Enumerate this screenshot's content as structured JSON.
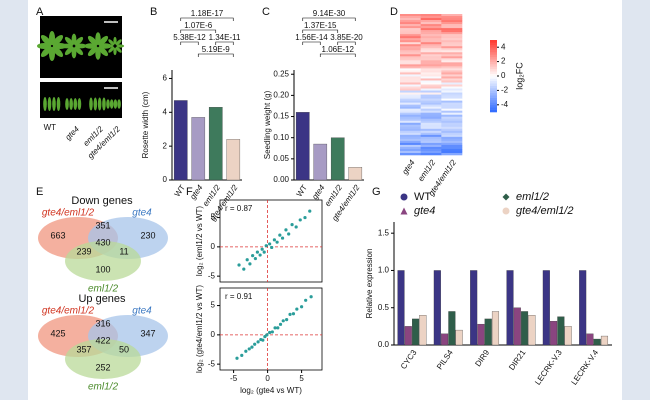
{
  "chart_data": [
    {
      "type": "image",
      "panel": "A",
      "labels": [
        "WT",
        "gte4",
        "eml1/2",
        "gte4/eml1/2"
      ]
    },
    {
      "type": "bar",
      "panel": "B",
      "ylabel": "Rosette width (cm)",
      "categories": [
        "WT",
        "gte4",
        "eml1/2",
        "gte4/eml1/2"
      ],
      "values": [
        4.7,
        3.7,
        4.3,
        2.4
      ],
      "colors": [
        "#3b3585",
        "#a79bc4",
        "#3e7a5c",
        "#ecd3c4"
      ],
      "ylim": [
        0,
        6.5
      ],
      "yticks": [
        0,
        2,
        4,
        6
      ],
      "comparisons": [
        {
          "label": "1.18E-17",
          "from": 0,
          "to": 3
        },
        {
          "label": "1.07E-6",
          "from": 0,
          "to": 2
        },
        {
          "label": "5.38E-12",
          "from": 0,
          "to": 1
        },
        {
          "label": "1.34E-11",
          "from": 2,
          "to": 3
        },
        {
          "label": "5.19E-9",
          "from": 1,
          "to": 3
        }
      ]
    },
    {
      "type": "bar",
      "panel": "C",
      "ylabel": "Seedling weight (g)",
      "categories": [
        "WT",
        "gte4",
        "eml1/2",
        "gte4/eml1/2"
      ],
      "values": [
        0.16,
        0.085,
        0.1,
        0.03
      ],
      "colors": [
        "#3b3585",
        "#a79bc4",
        "#3e7a5c",
        "#ecd3c4"
      ],
      "ylim": [
        0,
        0.26
      ],
      "yticks": [
        {
          "value": 0,
          "label": "0.00"
        },
        {
          "value": 0.05,
          "label": "0.05"
        },
        {
          "value": 0.1,
          "label": "0.10"
        },
        {
          "value": 0.15,
          "label": "0.15"
        },
        {
          "value": 0.2,
          "label": "0.20"
        },
        {
          "value": 0.25,
          "label": "0.25"
        }
      ],
      "comparisons": [
        {
          "label": "9.14E-30",
          "from": 0,
          "to": 3
        },
        {
          "label": "1.37E-15",
          "from": 0,
          "to": 2
        },
        {
          "label": "1.56E-14",
          "from": 0,
          "to": 1
        },
        {
          "label": "3.85E-20",
          "from": 2,
          "to": 3
        },
        {
          "label": "1.06E-12",
          "from": 1,
          "to": 3
        }
      ]
    },
    {
      "type": "heatmap",
      "panel": "D",
      "columns": [
        "gte4",
        "eml1/2",
        "gte4/eml1/2"
      ],
      "colorbar_label": "log₂FC",
      "clim": [
        -5,
        5
      ],
      "cticks": [
        4,
        2,
        0,
        -2,
        -4
      ]
    },
    {
      "type": "venn",
      "panel": "E",
      "venns": [
        {
          "title": "Down genes",
          "sets": [
            "gte4/eml1/2",
            "gte4",
            "eml1/2"
          ],
          "counts": [
            663,
            230,
            100,
            351,
            239,
            11,
            430
          ]
        },
        {
          "title": "Up genes",
          "sets": [
            "gte4/eml1/2",
            "gte4",
            "eml1/2"
          ],
          "counts": [
            425,
            347,
            252,
            316,
            357,
            50,
            422
          ]
        }
      ]
    },
    {
      "type": "scatter",
      "panel": "F",
      "xlabel": "log₂ (gte4 vs WT)",
      "xlim": [
        -7,
        8
      ],
      "ylim": [
        -6,
        8
      ],
      "xticks": [
        -5,
        0,
        5
      ],
      "yticks": [
        -5,
        0,
        5
      ],
      "color": "#2a9d9a",
      "panels": [
        {
          "ylabel": "log₂ (eml1/2 vs WT)",
          "r": "r = 0.87",
          "x": [
            -4.2,
            -3.5,
            -3,
            -2.6,
            -2.2,
            -1.8,
            -1.5,
            -1.1,
            -0.8,
            -0.5,
            -0.2,
            0.3,
            0.6,
            1,
            1.4,
            1.8,
            2.2,
            2.7,
            3.1,
            3.6,
            4.2,
            4.8,
            5.5,
            6.2
          ],
          "y": [
            -3.1,
            -3.8,
            -2.2,
            -2.9,
            -1.5,
            -2,
            -0.9,
            -1.4,
            -0.4,
            -0.9,
            0.2,
            0.5,
            -0.1,
            1.2,
            0.8,
            2,
            1.5,
            2.9,
            2.2,
            3.8,
            3.4,
            4.6,
            5,
            6.1
          ]
        },
        {
          "ylabel": "log₂ (gte4/eml1/2 vs WT)",
          "r": "r = 0.91",
          "x": [
            -4.5,
            -3.8,
            -3.2,
            -2.7,
            -2.3,
            -1.9,
            -1.4,
            -1,
            -0.7,
            -0.4,
            -0.1,
            0.3,
            0.7,
            1.1,
            1.5,
            1.9,
            2.3,
            2.8,
            3.3,
            3.8,
            4.3,
            5,
            5.6,
            6.4
          ],
          "y": [
            -4,
            -3.5,
            -2.8,
            -2.4,
            -2.1,
            -1.6,
            -1.2,
            -0.8,
            -0.9,
            -0.3,
            0,
            0.4,
            0.5,
            1.2,
            1.2,
            1.8,
            2.4,
            2.6,
            3.5,
            3.6,
            4.4,
            4.8,
            5.9,
            6.5
          ]
        }
      ]
    },
    {
      "type": "bar",
      "panel": "G",
      "ylabel": "Relative expression",
      "categories": [
        "CYC3",
        "PILS4",
        "DIR9",
        "DIR21",
        "LECRK-V.3",
        "LECRK-V.4"
      ],
      "ylim": [
        0,
        1.65
      ],
      "yticks": [
        {
          "value": 0,
          "label": "0.0"
        },
        0.5,
        {
          "value": 1,
          "label": "1.0"
        },
        1.5
      ],
      "series": [
        {
          "name": "WT",
          "color": "#3b3585",
          "marker": "circle",
          "values": [
            1,
            1,
            1,
            1,
            1,
            1
          ]
        },
        {
          "name": "gte4",
          "color": "#8a4580",
          "marker": "triangle",
          "values": [
            0.25,
            0.15,
            0.28,
            0.5,
            0.32,
            0.15
          ]
        },
        {
          "name": "eml1/2",
          "color": "#2f5e4a",
          "marker": "diamond",
          "values": [
            0.35,
            0.45,
            0.35,
            0.45,
            0.38,
            0.08
          ]
        },
        {
          "name": "gte4/eml1/2",
          "color": "#ecd3c4",
          "marker": "circle",
          "values": [
            0.4,
            0.2,
            0.45,
            0.4,
            0.25,
            0.12
          ]
        }
      ]
    }
  ]
}
